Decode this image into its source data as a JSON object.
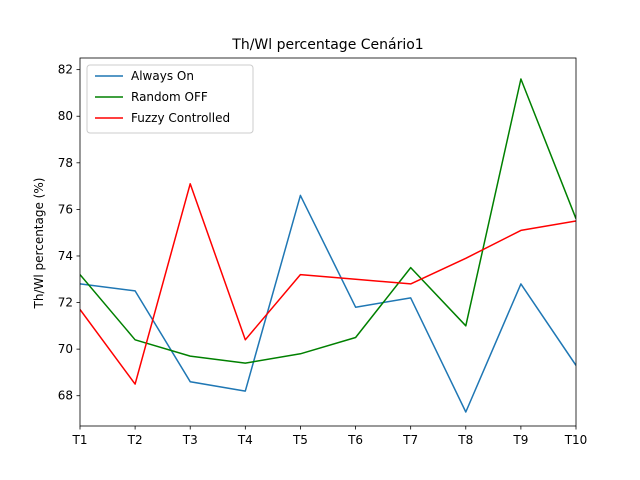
{
  "chart_data": {
    "type": "line",
    "title": "Th/Wl percentage Cenário1",
    "xlabel": "",
    "ylabel": "Th/Wl percentage (%)",
    "categories": [
      "T1",
      "T2",
      "T3",
      "T4",
      "T5",
      "T6",
      "T7",
      "T8",
      "T9",
      "T10"
    ],
    "ylim": [
      66.7,
      82.5
    ],
    "yticks": [
      68,
      70,
      72,
      74,
      76,
      78,
      80,
      82
    ],
    "grid": false,
    "legend": "top-left",
    "series": [
      {
        "name": "Always On",
        "color": "#1f77b4",
        "values": [
          72.8,
          72.5,
          68.6,
          68.2,
          76.6,
          71.8,
          72.2,
          67.3,
          72.8,
          69.3
        ]
      },
      {
        "name": "Random OFF",
        "color": "#008000",
        "values": [
          73.2,
          70.4,
          69.7,
          69.4,
          69.8,
          70.5,
          73.5,
          71.0,
          81.6,
          75.6
        ]
      },
      {
        "name": "Fuzzy Controlled",
        "color": "#ff0000",
        "values": [
          71.7,
          68.5,
          77.1,
          70.4,
          73.2,
          73.0,
          72.8,
          73.9,
          75.1,
          75.5
        ]
      }
    ]
  }
}
